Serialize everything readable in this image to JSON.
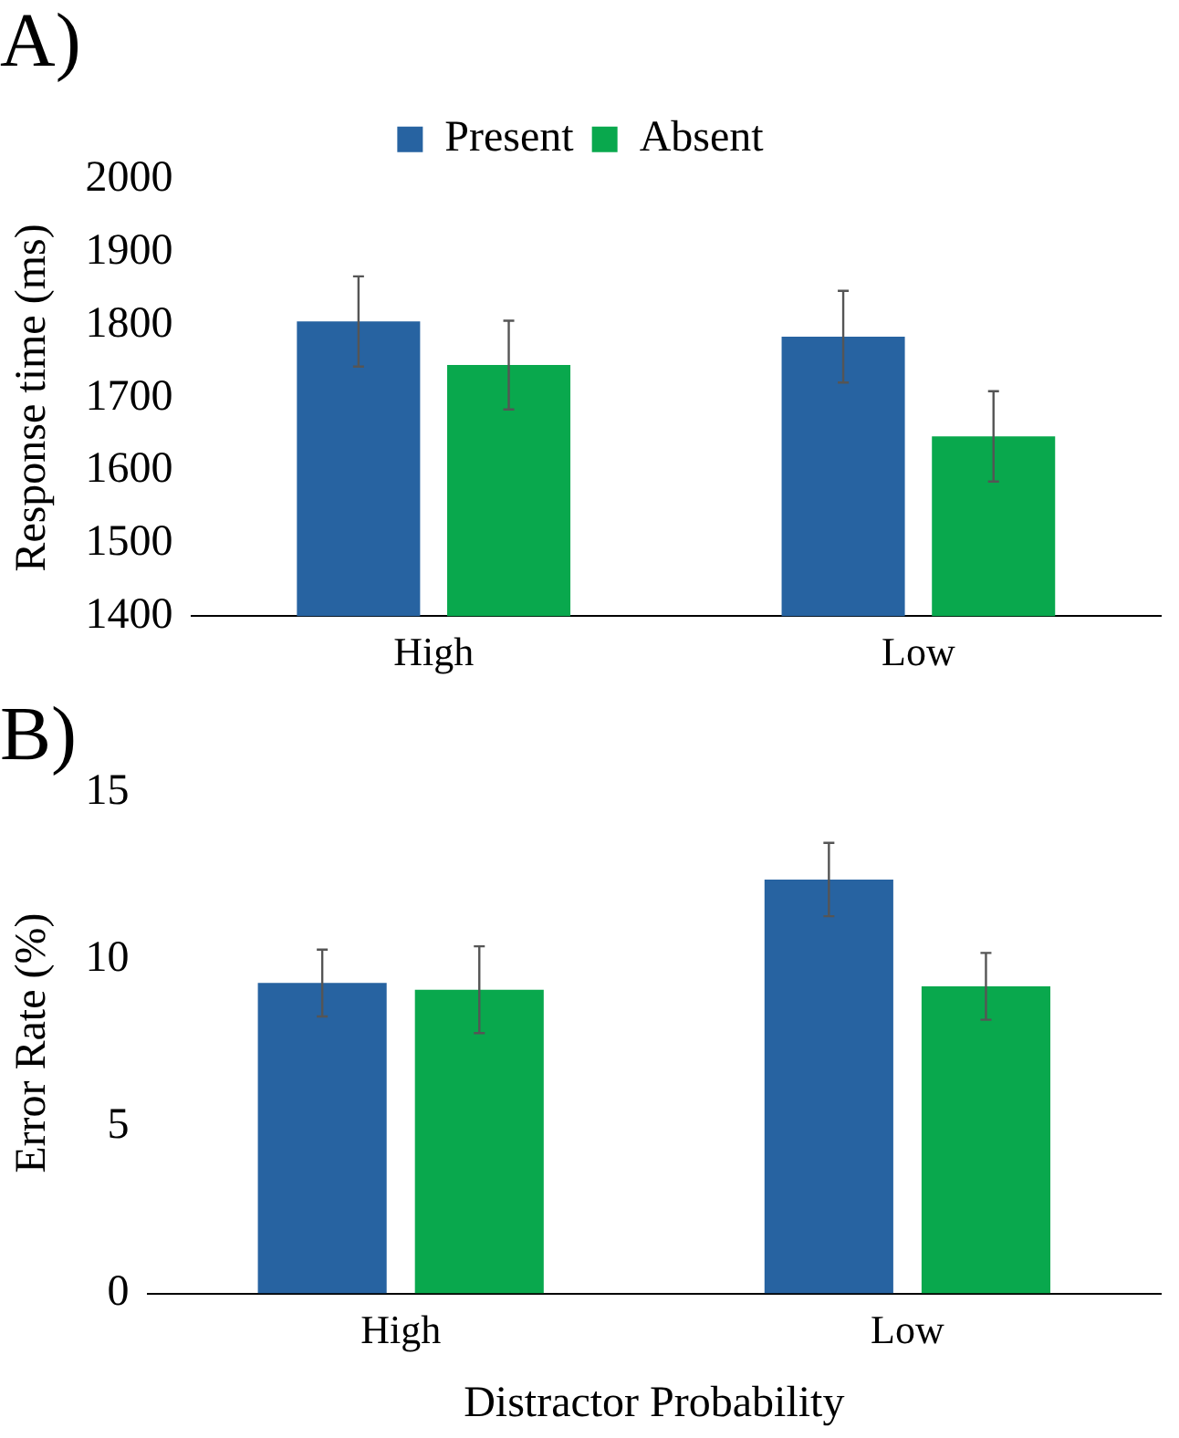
{
  "chart_data": [
    {
      "type": "bar",
      "title": "A)",
      "ylabel": "Response time (ms)",
      "categories": [
        "High",
        "Low"
      ],
      "ylim": [
        1400,
        2000
      ],
      "yticks": [
        1400,
        1500,
        1600,
        1700,
        1800,
        1900,
        2000
      ],
      "grid": false,
      "legend": "top",
      "series": [
        {
          "name": "Present",
          "color": "#2763a1",
          "values": [
            1805,
            1784
          ],
          "errors": [
            62,
            63
          ]
        },
        {
          "name": "Absent",
          "color": "#09a84d",
          "values": [
            1745,
            1647
          ],
          "errors": [
            61,
            62
          ]
        }
      ]
    },
    {
      "type": "bar",
      "title": "B)",
      "ylabel": "Error Rate (%)",
      "xlabel": "Distractor Probability",
      "categories": [
        "High",
        "Low"
      ],
      "ylim": [
        0,
        15
      ],
      "yticks": [
        0,
        5,
        10,
        15
      ],
      "grid": false,
      "series": [
        {
          "color": "#2763a1",
          "values": [
            9.3,
            12.4
          ],
          "errors": [
            1.0,
            1.1
          ]
        },
        {
          "color": "#09a84d",
          "values": [
            9.1,
            9.2
          ],
          "errors": [
            1.3,
            1.0
          ]
        }
      ]
    }
  ]
}
